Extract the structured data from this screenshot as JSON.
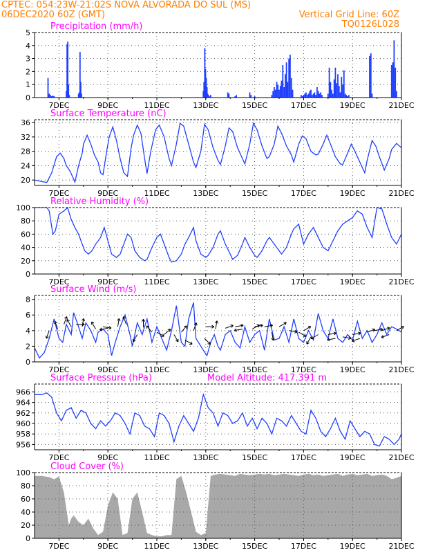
{
  "header": {
    "line1_left": "CPTEC:  054:23W-21:02S  NOVA ALVORADA DO SUL (MS)",
    "line2_left": "06DEC2020 60Z (GMT)",
    "line2_right": "Vertical Grid Line: 60Z",
    "line3_right": "TQ0126L028"
  },
  "colors": {
    "header": "#ff7f00",
    "title": "#ff00ff",
    "series": "#1f3fff",
    "cloud": "#a8a8a8",
    "arrow": "#000000"
  },
  "x_ticks": [
    "7DEC",
    "9DEC",
    "11DEC",
    "13DEC",
    "15DEC",
    "17DEC",
    "19DEC",
    "21DEC"
  ],
  "chart_data": [
    {
      "type": "bar",
      "title": "Precipitation (mm/h)",
      "ylim": [
        0,
        5
      ],
      "yticks": [
        "0",
        "1",
        "2",
        "3",
        "4",
        "5"
      ],
      "grid": true,
      "x": [
        6.55,
        6.6,
        6.65,
        6.7,
        6.75,
        6.8,
        7.3,
        7.33,
        7.36,
        7.39,
        7.42,
        7.8,
        7.83,
        7.86,
        7.89,
        7.92,
        12.9,
        12.93,
        12.96,
        12.99,
        13.02,
        13.05,
        13.08,
        13.11,
        13.14,
        13.2,
        13.9,
        13.95,
        14.2,
        14.25,
        14.8,
        14.85,
        15.0,
        15.7,
        15.75,
        15.8,
        15.85,
        15.9,
        15.95,
        16.0,
        16.05,
        16.1,
        16.15,
        16.2,
        16.25,
        16.3,
        16.35,
        16.4,
        16.45,
        16.5,
        16.55,
        16.9,
        16.95,
        17.0,
        17.05,
        17.1,
        17.15,
        17.2,
        17.25,
        17.3,
        17.35,
        17.4,
        17.45,
        17.5,
        17.55,
        17.6,
        17.65,
        17.7,
        17.75,
        18.0,
        18.05,
        18.1,
        18.15,
        18.2,
        18.25,
        18.3,
        18.35,
        18.4,
        18.45,
        18.5,
        18.55,
        18.6,
        18.65,
        18.7,
        18.75,
        18.8,
        18.85,
        19.7,
        19.75,
        19.8,
        20.6,
        20.65,
        20.7,
        20.75,
        20.8
      ],
      "values": [
        1.5,
        0.3,
        0.2,
        0.1,
        0.15,
        0.1,
        0.5,
        4.1,
        4.3,
        1.0,
        0.2,
        0.3,
        0.4,
        3.5,
        1.2,
        0.3,
        0.5,
        1.2,
        3.8,
        2.2,
        1.5,
        0.8,
        0.3,
        0.2,
        0.1,
        0.2,
        0.4,
        0.3,
        0.1,
        0.2,
        0.4,
        0.2,
        0.1,
        0.2,
        0.5,
        0.8,
        0.6,
        1.2,
        1.0,
        0.6,
        0.9,
        1.3,
        2.5,
        0.8,
        1.8,
        2.7,
        1.2,
        3.0,
        3.3,
        1.5,
        0.6,
        0.2,
        0.1,
        0.2,
        0.3,
        0.4,
        0.2,
        0.3,
        0.5,
        0.6,
        0.2,
        0.3,
        0.4,
        0.2,
        0.8,
        0.5,
        0.3,
        0.4,
        0.2,
        0.3,
        2.3,
        1.2,
        0.6,
        0.3,
        1.4,
        2.3,
        1.1,
        1.8,
        0.9,
        0.4,
        1.6,
        1.0,
        2.1,
        0.3,
        0.2,
        0.1,
        0.2,
        3.2,
        3.4,
        0.3,
        2.5,
        2.7,
        4.4,
        2.3,
        0.5
      ]
    },
    {
      "type": "line",
      "title": "Surface Temperature (nC)",
      "ylim": [
        18.5,
        36.8
      ],
      "yticks": [
        "20",
        "24",
        "28",
        "32",
        "36"
      ],
      "grid": true,
      "x": [
        6.0,
        6.5,
        6.7,
        6.9,
        7.05,
        7.2,
        7.3,
        7.45,
        7.55,
        7.65,
        7.8,
        7.95,
        8.0,
        8.15,
        8.3,
        8.45,
        8.6,
        8.7,
        8.8,
        8.95,
        9.05,
        9.2,
        9.35,
        9.5,
        9.65,
        9.8,
        9.95,
        10.05,
        10.2,
        10.35,
        10.5,
        10.6,
        10.75,
        10.95,
        11.1,
        11.3,
        11.5,
        11.6,
        11.8,
        11.95,
        12.1,
        12.3,
        12.5,
        12.6,
        12.8,
        12.95,
        13.1,
        13.3,
        13.5,
        13.6,
        13.8,
        13.95,
        14.1,
        14.3,
        14.5,
        14.6,
        14.8,
        14.95,
        15.1,
        15.3,
        15.5,
        15.6,
        15.8,
        15.95,
        16.1,
        16.3,
        16.5,
        16.6,
        16.8,
        16.95,
        17.1,
        17.3,
        17.5,
        17.6,
        17.8,
        17.95,
        18.1,
        18.3,
        18.5,
        18.6,
        18.8,
        18.95,
        19.1,
        19.3,
        19.5,
        19.6,
        19.8,
        19.95,
        20.1,
        20.3,
        20.5,
        20.6,
        20.8,
        21.0
      ],
      "values": [
        20.0,
        19.3,
        22.0,
        26.5,
        27.5,
        26.0,
        24.0,
        22.5,
        21.0,
        19.4,
        24.0,
        27.5,
        30.0,
        32.5,
        30.0,
        27.0,
        25.0,
        22.0,
        21.5,
        28.0,
        32.0,
        34.8,
        31.0,
        26.0,
        22.0,
        21.0,
        29.0,
        32.5,
        35.3,
        33.0,
        26.0,
        21.8,
        28.0,
        34.0,
        35.3,
        32.0,
        26.0,
        24.0,
        30.0,
        35.8,
        35.0,
        30.0,
        25.0,
        23.5,
        28.0,
        35.5,
        34.0,
        29.0,
        25.5,
        24.3,
        29.5,
        34.5,
        33.5,
        29.0,
        26.0,
        24.5,
        30.0,
        35.8,
        34.0,
        29.5,
        26.0,
        26.5,
        30.0,
        35.0,
        33.0,
        29.5,
        27.0,
        25.0,
        30.0,
        32.3,
        31.5,
        28.0,
        27.0,
        27.2,
        30.0,
        32.5,
        30.0,
        26.5,
        24.5,
        24.3,
        27.5,
        30.0,
        28.0,
        25.0,
        22.0,
        25.5,
        31.0,
        29.5,
        26.5,
        22.8,
        26.0,
        28.5,
        30.2,
        29.0
      ]
    },
    {
      "type": "line",
      "title": "Relative Humidity (%)",
      "ylim": [
        0,
        100
      ],
      "yticks": [
        "0",
        "20",
        "40",
        "60",
        "80",
        "100"
      ],
      "grid": true,
      "x": [
        6.0,
        6.3,
        6.5,
        6.6,
        6.75,
        6.85,
        7.0,
        7.2,
        7.35,
        7.5,
        7.65,
        7.8,
        7.95,
        8.05,
        8.2,
        8.35,
        8.5,
        8.7,
        8.85,
        9.0,
        9.15,
        9.35,
        9.5,
        9.65,
        9.8,
        9.95,
        10.1,
        10.3,
        10.5,
        10.6,
        10.8,
        11.0,
        11.15,
        11.35,
        11.5,
        11.6,
        11.8,
        12.0,
        12.15,
        12.3,
        12.5,
        12.6,
        12.8,
        13.0,
        13.1,
        13.3,
        13.5,
        13.6,
        13.8,
        14.0,
        14.1,
        14.3,
        14.5,
        14.6,
        14.8,
        15.0,
        15.1,
        15.3,
        15.5,
        15.6,
        15.8,
        16.0,
        16.1,
        16.3,
        16.5,
        16.6,
        16.8,
        17.0,
        17.2,
        17.4,
        17.6,
        17.8,
        18.0,
        18.2,
        18.4,
        18.6,
        18.8,
        19.0,
        19.2,
        19.4,
        19.6,
        19.8,
        20.0,
        20.2,
        20.4,
        20.6,
        20.8,
        21.0
      ],
      "values": [
        100,
        100,
        100,
        95,
        60,
        65,
        90,
        95,
        100,
        82,
        70,
        60,
        45,
        35,
        30,
        35,
        45,
        55,
        70,
        50,
        30,
        25,
        30,
        45,
        60,
        55,
        35,
        25,
        20,
        22,
        40,
        55,
        60,
        40,
        25,
        18,
        20,
        30,
        45,
        55,
        70,
        50,
        30,
        25,
        28,
        40,
        60,
        65,
        45,
        30,
        22,
        28,
        45,
        55,
        40,
        28,
        25,
        35,
        50,
        55,
        45,
        35,
        30,
        40,
        60,
        68,
        75,
        45,
        60,
        70,
        55,
        40,
        35,
        50,
        65,
        75,
        80,
        85,
        95,
        90,
        70,
        55,
        100,
        98,
        75,
        55,
        45,
        60
      ]
    },
    {
      "type": "line",
      "title": "Surface Wind (m/s)",
      "ylim": [
        0,
        8.5
      ],
      "yticks": [
        "0",
        "2",
        "4",
        "6",
        "8"
      ],
      "grid": true,
      "x": [
        6.0,
        6.2,
        6.4,
        6.6,
        6.8,
        7.0,
        7.15,
        7.3,
        7.5,
        7.6,
        7.8,
        7.95,
        8.1,
        8.3,
        8.5,
        8.6,
        8.8,
        9.0,
        9.15,
        9.3,
        9.5,
        9.7,
        9.9,
        10.0,
        10.2,
        10.4,
        10.6,
        10.8,
        11.0,
        11.2,
        11.4,
        11.6,
        11.8,
        12.0,
        12.15,
        12.3,
        12.5,
        12.6,
        12.8,
        12.9,
        13.05,
        13.2,
        13.35,
        13.5,
        13.6,
        13.8,
        14.0,
        14.2,
        14.4,
        14.6,
        14.8,
        15.0,
        15.2,
        15.4,
        15.6,
        15.8,
        16.0,
        16.2,
        16.4,
        16.6,
        16.8,
        17.0,
        17.2,
        17.4,
        17.6,
        17.8,
        18.0,
        18.2,
        18.4,
        18.6,
        18.8,
        19.0,
        19.2,
        19.4,
        19.6,
        19.8,
        20.0,
        20.2,
        20.4,
        20.6,
        20.8,
        21.0
      ],
      "values": [
        1.8,
        0.5,
        1.2,
        3.0,
        5.5,
        3.0,
        2.5,
        4.8,
        3.5,
        6.3,
        4.5,
        3.0,
        5.0,
        4.0,
        2.5,
        3.8,
        4.2,
        3.5,
        0.8,
        2.5,
        4.5,
        6.0,
        3.5,
        2.0,
        5.0,
        3.5,
        5.5,
        2.5,
        4.5,
        3.0,
        1.5,
        4.0,
        7.2,
        2.5,
        2.0,
        5.5,
        7.6,
        3.0,
        2.0,
        1.5,
        0.8,
        2.5,
        3.5,
        2.0,
        1.5,
        3.5,
        4.0,
        2.5,
        1.8,
        4.5,
        2.5,
        3.5,
        4.0,
        1.5,
        5.5,
        2.8,
        3.0,
        4.5,
        2.5,
        5.5,
        3.0,
        2.5,
        4.0,
        2.8,
        6.2,
        4.0,
        3.0,
        5.5,
        3.0,
        2.5,
        3.5,
        2.8,
        5.2,
        3.0,
        4.0,
        2.5,
        3.5,
        5.0,
        3.5,
        4.5,
        4.2,
        3.8
      ]
    },
    {
      "type": "line",
      "title": "Surface Pressure (hPa)",
      "subtitle": "Model Altitude: 417.391 m",
      "ylim": [
        955.0,
        967.5
      ],
      "yticks": [
        "956",
        "958",
        "960",
        "962",
        "964",
        "966"
      ],
      "grid": true,
      "x": [
        6.0,
        6.3,
        6.5,
        6.7,
        6.9,
        7.1,
        7.3,
        7.5,
        7.7,
        7.9,
        8.1,
        8.3,
        8.5,
        8.7,
        8.9,
        9.1,
        9.3,
        9.5,
        9.7,
        9.9,
        10.1,
        10.3,
        10.5,
        10.7,
        10.9,
        11.1,
        11.3,
        11.5,
        11.7,
        11.9,
        12.1,
        12.3,
        12.5,
        12.7,
        12.9,
        13.1,
        13.3,
        13.5,
        13.7,
        13.9,
        14.1,
        14.3,
        14.5,
        14.7,
        14.9,
        15.1,
        15.3,
        15.5,
        15.7,
        15.9,
        16.1,
        16.3,
        16.5,
        16.7,
        16.9,
        17.1,
        17.3,
        17.5,
        17.7,
        17.9,
        18.1,
        18.3,
        18.5,
        18.7,
        18.9,
        19.1,
        19.3,
        19.5,
        19.7,
        19.9,
        20.1,
        20.3,
        20.5,
        20.7,
        20.9,
        21.0
      ],
      "values": [
        965.5,
        965.5,
        965.8,
        965.0,
        962.0,
        960.5,
        962.5,
        963.0,
        961.0,
        962.5,
        962.0,
        960.0,
        959.0,
        960.5,
        959.5,
        960.5,
        962.0,
        961.5,
        960.0,
        958.0,
        962.0,
        961.5,
        959.5,
        959.0,
        957.5,
        962.0,
        961.5,
        960.0,
        956.5,
        959.5,
        961.5,
        960.0,
        958.5,
        961.0,
        965.5,
        963.0,
        962.0,
        959.5,
        962.0,
        961.5,
        960.0,
        960.5,
        962.0,
        959.5,
        961.0,
        959.0,
        961.0,
        960.0,
        958.0,
        961.0,
        960.5,
        959.5,
        961.5,
        960.0,
        958.5,
        958.0,
        962.5,
        961.0,
        958.5,
        957.5,
        959.0,
        961.0,
        958.5,
        957.0,
        960.5,
        959.0,
        957.5,
        958.5,
        958.0,
        956.0,
        955.7,
        957.5,
        957.0,
        956.0,
        957.0,
        958.0
      ]
    },
    {
      "type": "area",
      "title": "Cloud Cover (%)",
      "ylim": [
        0,
        100
      ],
      "yticks": [
        "0",
        "20",
        "40",
        "60",
        "80",
        "100"
      ],
      "grid": true,
      "x": [
        6.0,
        6.3,
        6.6,
        6.8,
        7.0,
        7.2,
        7.4,
        7.5,
        7.6,
        7.8,
        8.0,
        8.2,
        8.4,
        8.6,
        8.8,
        9.0,
        9.2,
        9.4,
        9.6,
        9.8,
        10.0,
        10.2,
        10.4,
        10.6,
        10.8,
        11.0,
        11.2,
        11.4,
        11.6,
        11.8,
        12.0,
        12.2,
        12.4,
        12.6,
        12.8,
        13.0,
        13.2,
        13.4,
        13.6,
        13.8,
        14.0,
        14.2,
        14.4,
        14.6,
        14.8,
        15.0,
        15.2,
        15.4,
        15.6,
        15.8,
        16.0,
        16.2,
        16.4,
        16.6,
        16.8,
        17.0,
        17.2,
        17.4,
        17.6,
        17.8,
        18.0,
        18.2,
        18.4,
        18.6,
        18.8,
        19.0,
        19.2,
        19.4,
        19.6,
        19.8,
        20.0,
        20.2,
        20.4,
        20.6,
        20.8,
        21.0
      ],
      "values": [
        95,
        95,
        93,
        90,
        94,
        70,
        20,
        30,
        35,
        25,
        20,
        30,
        15,
        5,
        10,
        50,
        70,
        60,
        5,
        8,
        60,
        70,
        40,
        8,
        5,
        3,
        3,
        5,
        5,
        90,
        95,
        70,
        40,
        10,
        5,
        8,
        95,
        97,
        98,
        97,
        96,
        95,
        98,
        97,
        96,
        97,
        98,
        97,
        98,
        96,
        97,
        98,
        97,
        96,
        95,
        97,
        98,
        96,
        97,
        95,
        96,
        97,
        98,
        95,
        97,
        98,
        96,
        97,
        98,
        95,
        96,
        97,
        95,
        90,
        92,
        95
      ]
    }
  ],
  "wind_arrows": [
    {
      "x": 6.6,
      "v": 4.0,
      "dir": 200
    },
    {
      "x": 6.95,
      "v": 4.2,
      "dir": 340
    },
    {
      "x": 7.2,
      "v": 4.8,
      "dir": 20
    },
    {
      "x": 7.5,
      "v": 4.5,
      "dir": 330
    },
    {
      "x": 7.7,
      "v": 4.8,
      "dir": 90
    },
    {
      "x": 7.95,
      "v": 4.5,
      "dir": 10
    },
    {
      "x": 8.5,
      "v": 4.2,
      "dir": 330
    },
    {
      "x": 8.8,
      "v": 4.5,
      "dir": 100
    },
    {
      "x": 9.0,
      "v": 4.3,
      "dir": 260
    },
    {
      "x": 9.4,
      "v": 4.5,
      "dir": 10
    },
    {
      "x": 9.75,
      "v": 4.8,
      "dir": 340
    },
    {
      "x": 10.2,
      "v": 3.5,
      "dir": 210
    },
    {
      "x": 10.45,
      "v": 4.4,
      "dir": 0
    },
    {
      "x": 10.8,
      "v": 3.8,
      "dir": 320
    },
    {
      "x": 11.0,
      "v": 3.8,
      "dir": 120
    },
    {
      "x": 11.3,
      "v": 3.5,
      "dir": 50
    },
    {
      "x": 11.7,
      "v": 3.5,
      "dir": 150
    },
    {
      "x": 12.0,
      "v": 3.8,
      "dir": 40
    },
    {
      "x": 12.15,
      "v": 2.8,
      "dir": 120
    },
    {
      "x": 12.5,
      "v": 4.0,
      "dir": 20
    },
    {
      "x": 12.95,
      "v": 3.0,
      "dir": 135
    },
    {
      "x": 13.0,
      "v": 4.5,
      "dir": 90
    },
    {
      "x": 13.4,
      "v": 4.2,
      "dir": 10
    },
    {
      "x": 13.8,
      "v": 4.3,
      "dir": 70
    },
    {
      "x": 14.2,
      "v": 4.5,
      "dir": 80
    },
    {
      "x": 14.5,
      "v": 4.2,
      "dir": 260
    },
    {
      "x": 14.9,
      "v": 4.2,
      "dir": 60
    },
    {
      "x": 15.0,
      "v": 4.5,
      "dir": 80
    },
    {
      "x": 15.4,
      "v": 4.5,
      "dir": 80
    },
    {
      "x": 15.7,
      "v": 3.8,
      "dir": 170
    },
    {
      "x": 16.0,
      "v": 4.5,
      "dir": 60
    },
    {
      "x": 16.4,
      "v": 4.0,
      "dir": 100
    },
    {
      "x": 16.8,
      "v": 3.8,
      "dir": 120
    },
    {
      "x": 17.0,
      "v": 4.0,
      "dir": 60
    },
    {
      "x": 17.3,
      "v": 3.2,
      "dir": 210
    },
    {
      "x": 17.6,
      "v": 3.5,
      "dir": 240
    },
    {
      "x": 18.0,
      "v": 3.5,
      "dir": 80
    },
    {
      "x": 18.3,
      "v": 3.0,
      "dir": 260
    },
    {
      "x": 18.6,
      "v": 3.2,
      "dir": 100
    },
    {
      "x": 19.0,
      "v": 3.5,
      "dir": 80
    },
    {
      "x": 19.3,
      "v": 3.0,
      "dir": 250
    },
    {
      "x": 19.6,
      "v": 3.8,
      "dir": 70
    },
    {
      "x": 19.9,
      "v": 4.0,
      "dir": 80
    },
    {
      "x": 20.2,
      "v": 4.0,
      "dir": 70
    },
    {
      "x": 20.5,
      "v": 3.5,
      "dir": 250
    },
    {
      "x": 20.8,
      "v": 4.0,
      "dir": 60
    }
  ]
}
